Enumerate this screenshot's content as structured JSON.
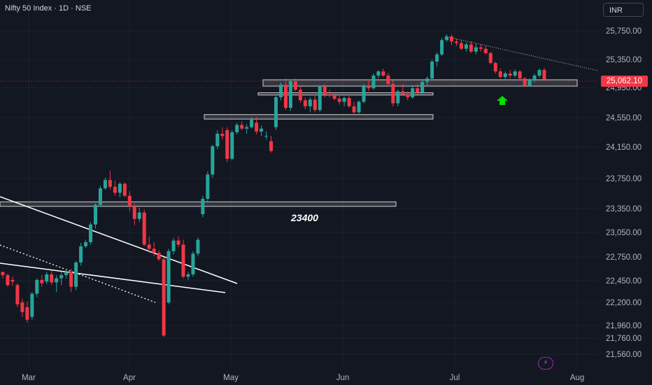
{
  "header": {
    "title": "Nifty 50 Index · 1D · NSE",
    "currency": "INR"
  },
  "last_price": "25,062.10",
  "colors": {
    "background": "#131722",
    "up": "#26a69a",
    "down": "#f23645",
    "grid": "#1e222d",
    "line": "#ffffff",
    "arrow": "#00e000",
    "last_price": "#f23645"
  },
  "icons": {
    "signal_arrow": "up-arrow-icon",
    "bolt": "lightning-icon"
  },
  "chart_data": {
    "type": "candlestick",
    "title": "Nifty 50 Index · 1D · NSE",
    "y_axis_ticks": [
      "25,750.00",
      "25,350.00",
      "24,950.00",
      "24,550.00",
      "24,150.00",
      "23,750.00",
      "23,350.00",
      "23,050.00",
      "22,750.00",
      "22,450.00",
      "22,200.00",
      "21,960.00",
      "21,760.00",
      "21,560.00"
    ],
    "x_axis_ticks": [
      "Mar",
      "Apr",
      "May",
      "Jun",
      "Jul",
      "Aug"
    ],
    "last_price": 25062.1,
    "annotations": [
      {
        "text": "23400"
      }
    ],
    "candles_approx": [
      [
        22560,
        22560,
        22480,
        22520
      ],
      [
        22520,
        22540,
        22380,
        22400
      ],
      [
        22460,
        22500,
        22390,
        22440
      ],
      [
        22400,
        22420,
        22150,
        22180
      ],
      [
        22200,
        22240,
        22050,
        22100
      ],
      [
        22150,
        22210,
        21990,
        22020
      ],
      [
        22050,
        22320,
        22020,
        22300
      ],
      [
        22300,
        22480,
        22260,
        22460
      ],
      [
        22460,
        22520,
        22380,
        22420
      ],
      [
        22440,
        22560,
        22410,
        22530
      ],
      [
        22530,
        22580,
        22400,
        22430
      ],
      [
        22430,
        22520,
        22320,
        22480
      ],
      [
        22480,
        22560,
        22400,
        22520
      ],
      [
        22520,
        22600,
        22480,
        22560
      ],
      [
        22560,
        22600,
        22320,
        22380
      ],
      [
        22380,
        22700,
        22340,
        22680
      ],
      [
        22680,
        22920,
        22640,
        22880
      ],
      [
        22880,
        22960,
        22860,
        22930
      ],
      [
        22930,
        23180,
        22900,
        23150
      ],
      [
        23150,
        23420,
        23100,
        23400
      ],
      [
        23400,
        23650,
        23380,
        23620
      ],
      [
        23620,
        23760,
        23600,
        23730
      ],
      [
        23730,
        23850,
        23600,
        23640
      ],
      [
        23640,
        23720,
        23520,
        23560
      ],
      [
        23560,
        23700,
        23500,
        23680
      ],
      [
        23680,
        23700,
        23500,
        23520
      ],
      [
        23520,
        23580,
        23320,
        23380
      ],
      [
        23380,
        23420,
        23140,
        23220
      ],
      [
        23220,
        23360,
        23180,
        23300
      ],
      [
        23300,
        23340,
        22880,
        22900
      ],
      [
        22900,
        23000,
        22800,
        22850
      ],
      [
        22850,
        22930,
        22760,
        22800
      ],
      [
        22800,
        22830,
        22700,
        22720
      ],
      [
        22720,
        22740,
        21780,
        21800
      ],
      [
        22200,
        22850,
        22180,
        22820
      ],
      [
        22820,
        22980,
        22780,
        22950
      ],
      [
        22950,
        23000,
        22870,
        22900
      ],
      [
        22900,
        22960,
        22480,
        22500
      ],
      [
        22500,
        22560,
        22460,
        22530
      ],
      [
        22530,
        22820,
        22500,
        22790
      ],
      [
        22790,
        22990,
        22760,
        22960
      ],
      [
        23280,
        23520,
        23240,
        23480
      ],
      [
        23480,
        23840,
        23440,
        23800
      ],
      [
        23800,
        24180,
        23760,
        24160
      ],
      [
        24160,
        24380,
        24120,
        24330
      ],
      [
        24330,
        24420,
        24250,
        24300
      ],
      [
        24380,
        24420,
        23960,
        24000
      ],
      [
        24000,
        24380,
        23980,
        24350
      ],
      [
        24350,
        24480,
        24320,
        24450
      ],
      [
        24450,
        24500,
        24380,
        24400
      ],
      [
        24400,
        24460,
        24330,
        24420
      ],
      [
        24420,
        24560,
        24400,
        24520
      ],
      [
        24480,
        24560,
        24320,
        24360
      ],
      [
        24360,
        24440,
        24300,
        24400
      ],
      [
        24300,
        24360,
        24250,
        24300
      ],
      [
        24230,
        24300,
        24080,
        24100
      ],
      [
        24420,
        24850,
        24380,
        24820
      ],
      [
        24820,
        25020,
        24780,
        24990
      ],
      [
        24990,
        25080,
        24650,
        24680
      ],
      [
        24680,
        25060,
        24640,
        25040
      ],
      [
        25040,
        25080,
        24900,
        24920
      ],
      [
        24920,
        24960,
        24750,
        24780
      ],
      [
        24780,
        24820,
        24660,
        24700
      ],
      [
        24700,
        24820,
        24620,
        24790
      ],
      [
        24790,
        24840,
        24620,
        24650
      ],
      [
        24650,
        24980,
        24620,
        24960
      ],
      [
        24960,
        25000,
        24820,
        24860
      ],
      [
        24860,
        24920,
        24820,
        24840
      ],
      [
        24840,
        24870,
        24780,
        24800
      ],
      [
        24800,
        24840,
        24720,
        24760
      ],
      [
        24760,
        24830,
        24700,
        24810
      ],
      [
        24810,
        24840,
        24680,
        24700
      ],
      [
        24700,
        24760,
        24600,
        24620
      ],
      [
        24620,
        24780,
        24600,
        24760
      ],
      [
        24760,
        25000,
        24740,
        24980
      ],
      [
        24980,
        25060,
        24900,
        24940
      ],
      [
        24940,
        25150,
        24920,
        25120
      ],
      [
        25120,
        25200,
        25080,
        25180
      ],
      [
        25180,
        25220,
        25100,
        25120
      ],
      [
        25120,
        25160,
        24960,
        25000
      ],
      [
        25000,
        25050,
        24700,
        24740
      ],
      [
        24740,
        24920,
        24700,
        24900
      ],
      [
        24900,
        25000,
        24840,
        24860
      ],
      [
        24860,
        24900,
        24780,
        24820
      ],
      [
        24820,
        24960,
        24800,
        24940
      ],
      [
        24940,
        25000,
        24860,
        24880
      ],
      [
        24880,
        25050,
        24850,
        25030
      ],
      [
        25030,
        25110,
        24980,
        25080
      ],
      [
        25080,
        25350,
        25060,
        25320
      ],
      [
        25320,
        25450,
        25250,
        25420
      ],
      [
        25420,
        25650,
        25400,
        25620
      ],
      [
        25620,
        25700,
        25600,
        25670
      ],
      [
        25670,
        25700,
        25550,
        25600
      ],
      [
        25600,
        25640,
        25540,
        25580
      ],
      [
        25580,
        25620,
        25480,
        25500
      ],
      [
        25500,
        25590,
        25460,
        25560
      ],
      [
        25560,
        25600,
        25440,
        25460
      ],
      [
        25460,
        25570,
        25420,
        25520
      ],
      [
        25520,
        25560,
        25460,
        25500
      ],
      [
        25500,
        25540,
        25420,
        25440
      ],
      [
        25440,
        25460,
        25280,
        25300
      ],
      [
        25300,
        25320,
        25150,
        25180
      ],
      [
        25180,
        25220,
        25080,
        25100
      ],
      [
        25100,
        25180,
        25050,
        25150
      ],
      [
        25150,
        25200,
        25080,
        25120
      ],
      [
        25120,
        25210,
        25090,
        25180
      ],
      [
        25180,
        25200,
        25050,
        25080
      ],
      [
        25080,
        25100,
        24960,
        24980
      ],
      [
        24980,
        25080,
        24960,
        25060
      ],
      [
        25060,
        25150,
        25020,
        25120
      ],
      [
        25120,
        25220,
        25090,
        25200
      ],
      [
        25200,
        25230,
        25040,
        25062
      ]
    ],
    "horizontal_zones": [
      {
        "price_low": 23380,
        "price_high": 23440
      },
      {
        "price_low": 24530,
        "price_high": 24590
      },
      {
        "price_low": 24850,
        "price_high": 24880
      },
      {
        "price_low": 24970,
        "price_high": 25060
      }
    ]
  }
}
